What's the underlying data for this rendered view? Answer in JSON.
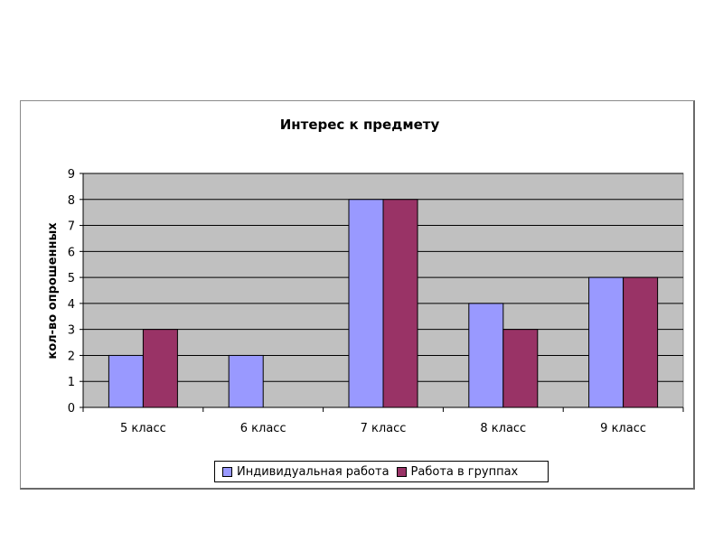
{
  "colors": {
    "plot_bg": "#c0c0c0",
    "grid": "#000000",
    "series1": "#9999ff",
    "series2": "#993366"
  },
  "chart_data": {
    "type": "bar",
    "title": "Интерес к предмету",
    "xlabel": "",
    "ylabel": "кол-во опрошенных",
    "categories": [
      "5 класс",
      "6 класс",
      "7 класс",
      "8 класс",
      "9 класс"
    ],
    "series": [
      {
        "name": "Индивидуальная работа",
        "values": [
          2,
          2,
          8,
          4,
          5
        ],
        "color": "#9999ff"
      },
      {
        "name": "Работа в группах",
        "values": [
          3,
          0,
          8,
          3,
          5
        ],
        "color": "#993366"
      }
    ],
    "ylim": [
      0,
      9
    ],
    "yticks": [
      0,
      1,
      2,
      3,
      4,
      5,
      6,
      7,
      8,
      9
    ],
    "grid": true,
    "legend": "bottom"
  }
}
